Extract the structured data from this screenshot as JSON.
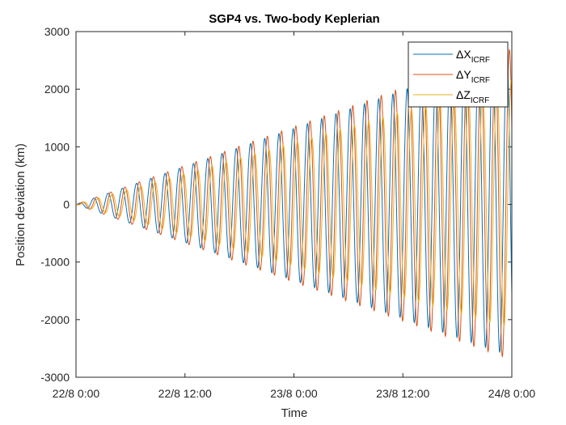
{
  "chart_data": {
    "type": "line",
    "title": "SGP4 vs. Two-body Keplerian",
    "xlabel": "Time",
    "ylabel": "Position deviation (km)",
    "x_axis": {
      "kind": "datetime",
      "start": "22/8 0:00",
      "end": "24/8 0:00",
      "ticks": [
        "22/8 0:00",
        "22/8 12:00",
        "23/8 0:00",
        "23/8 12:00",
        "24/8 0:00"
      ]
    },
    "ylim": [
      -3000,
      3000
    ],
    "yticks": [
      -3000,
      -2000,
      -1000,
      0,
      1000,
      2000,
      3000
    ],
    "yticklabels": [
      "-3000",
      "-2000",
      "-1000",
      "0",
      "1000",
      "2000",
      "3000"
    ],
    "grid": false,
    "legend_position": "top-right",
    "oscillation": {
      "orbits_per_day": 15.3,
      "amplitude_growth_km_per_day": 1320
    },
    "series": [
      {
        "name": "ΔX",
        "name_subscript": "ICRF",
        "color": "#0072BD",
        "amplitude_envelope": {
          "x": [
            "22/8 0:00",
            "23/8 0:00",
            "24/8 0:00"
          ],
          "y": [
            0,
            1320,
            2640
          ]
        }
      },
      {
        "name": "ΔY",
        "name_subscript": "ICRF",
        "color": "#D95319",
        "amplitude_envelope": {
          "x": [
            "22/8 0:00",
            "23/8 0:00",
            "24/8 0:00"
          ],
          "y": [
            0,
            1350,
            2700
          ]
        }
      },
      {
        "name": "ΔZ",
        "name_subscript": "ICRF",
        "color": "#EDB120",
        "amplitude_envelope": {
          "x": [
            "22/8 0:00",
            "23/8 0:00",
            "24/8 0:00"
          ],
          "y": [
            0,
            1080,
            2160
          ]
        }
      }
    ]
  }
}
